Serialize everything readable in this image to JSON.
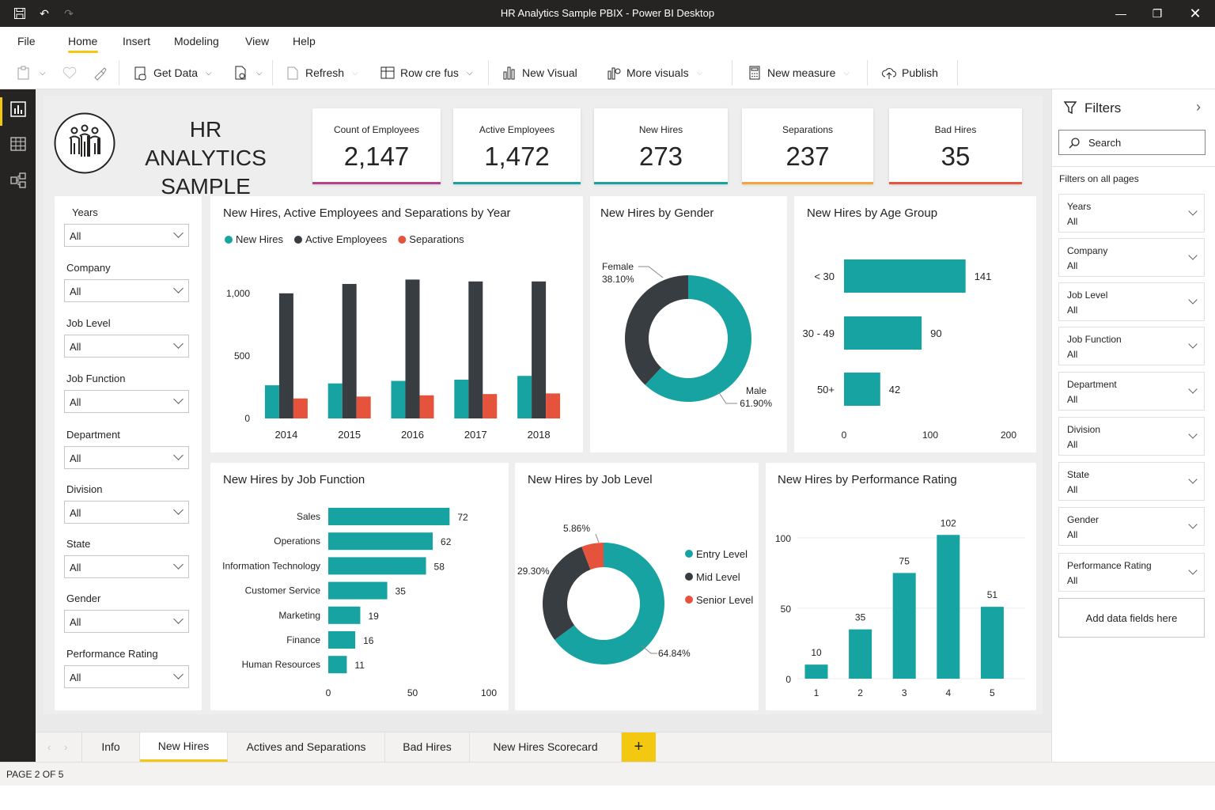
{
  "app": {
    "title": "HR Analytics Sample PBIX - Power BI Desktop"
  },
  "menu": {
    "items": [
      "File",
      "Home",
      "Insert",
      "Modeling",
      "View",
      "Help"
    ]
  },
  "ribbon": {
    "get_data": "Get Data",
    "refresh": "Refresh",
    "transform": "Row cre fus",
    "new_visual": "New Visual",
    "more_visuals": "More visuals",
    "new_measure": "New measure",
    "publish": "Publish"
  },
  "report": {
    "title_line1": "HR ANALYTICS",
    "title_line2": "SAMPLE",
    "kpis": [
      {
        "label": "Count of Employees",
        "value": "2,147",
        "color": "#b4418e"
      },
      {
        "label": "Active Employees",
        "value": "1,472",
        "color": "#18a3a3"
      },
      {
        "label": "New Hires",
        "value": "273",
        "color": "#18a3a3"
      },
      {
        "label": "Separations",
        "value": "237",
        "color": "#f2a53a"
      },
      {
        "label": "Bad Hires",
        "value": "35",
        "color": "#e6533c"
      }
    ],
    "slicers": [
      {
        "label": "Years",
        "value": "All"
      },
      {
        "label": "Company",
        "value": "All"
      },
      {
        "label": "Job Level",
        "value": "All"
      },
      {
        "label": "Job Function",
        "value": "All"
      },
      {
        "label": "Department",
        "value": "All"
      },
      {
        "label": "Division",
        "value": "All"
      },
      {
        "label": "State",
        "value": "All"
      },
      {
        "label": "Gender",
        "value": "All"
      },
      {
        "label": "Performance Rating",
        "value": "All"
      }
    ]
  },
  "colors": {
    "teal": "#18a3a3",
    "dark": "#383d41",
    "red": "#e6533c",
    "yellow": "#f2c811"
  },
  "chart_data": [
    {
      "type": "bar",
      "title": "New Hires, Active Employees and Separations by Year",
      "categories": [
        "2014",
        "2015",
        "2016",
        "2017",
        "2018"
      ],
      "series": [
        {
          "name": "New Hires",
          "values": [
            265,
            280,
            300,
            310,
            340
          ]
        },
        {
          "name": "Active Employees",
          "values": [
            1000,
            1075,
            1110,
            1095,
            1095
          ]
        },
        {
          "name": "Separations",
          "values": [
            160,
            175,
            185,
            195,
            200
          ]
        }
      ],
      "yticks": [
        "0",
        "500",
        "1,000"
      ],
      "ylim": [
        0,
        1100
      ],
      "legend": "top-left"
    },
    {
      "type": "pie",
      "title": "New Hires by Gender",
      "categories": [
        "Female",
        "Male"
      ],
      "values": [
        38.1,
        61.9
      ],
      "labels": [
        "Female\n38.10%",
        "Male\n61.90%"
      ]
    },
    {
      "type": "bar",
      "title": "New Hires by Age Group",
      "categories": [
        "< 30",
        "30 - 49",
        "50+"
      ],
      "values": [
        141,
        90,
        42
      ],
      "xticks": [
        "0",
        "100",
        "200"
      ],
      "xlim": [
        0,
        200
      ]
    },
    {
      "type": "bar",
      "title": "New Hires by Job Function",
      "categories": [
        "Sales",
        "Operations",
        "Information Technology",
        "Customer Service",
        "Marketing",
        "Finance",
        "Human Resources"
      ],
      "values": [
        72,
        62,
        58,
        35,
        19,
        16,
        11
      ],
      "xticks": [
        "0",
        "50",
        "100"
      ],
      "xlim": [
        0,
        100
      ]
    },
    {
      "type": "pie",
      "title": "New Hires by Job Level",
      "categories": [
        "Entry Level",
        "Mid Level",
        "Senior Level"
      ],
      "values": [
        64.84,
        29.3,
        5.86
      ],
      "labels": [
        "64.84%",
        "29.30%",
        "5.86%"
      ],
      "legend": "right"
    },
    {
      "type": "bar",
      "title": "New Hires by Performance Rating",
      "categories": [
        "1",
        "2",
        "3",
        "4",
        "5"
      ],
      "values": [
        10,
        35,
        75,
        102,
        51
      ],
      "yticks": [
        "0",
        "50",
        "100"
      ],
      "ylim": [
        0,
        110
      ]
    }
  ],
  "filters": {
    "title": "Filters",
    "search_placeholder": "Search",
    "section": "Filters on all pages",
    "cards": [
      {
        "name": "Years",
        "value": "All"
      },
      {
        "name": "Company",
        "value": "All"
      },
      {
        "name": "Job Level",
        "value": "All"
      },
      {
        "name": "Job Function",
        "value": "All"
      },
      {
        "name": "Department",
        "value": "All"
      },
      {
        "name": "Division",
        "value": "All"
      },
      {
        "name": "State",
        "value": "All"
      },
      {
        "name": "Gender",
        "value": "All"
      },
      {
        "name": "Performance Rating",
        "value": "All"
      }
    ],
    "add_fields": "Add data fields here"
  },
  "tabs": [
    "Info",
    "New Hires",
    "Actives and Separations",
    "Bad Hires",
    "New Hires Scorecard"
  ],
  "add_tab": "+",
  "status": {
    "page": "PAGE 2 OF 5"
  }
}
